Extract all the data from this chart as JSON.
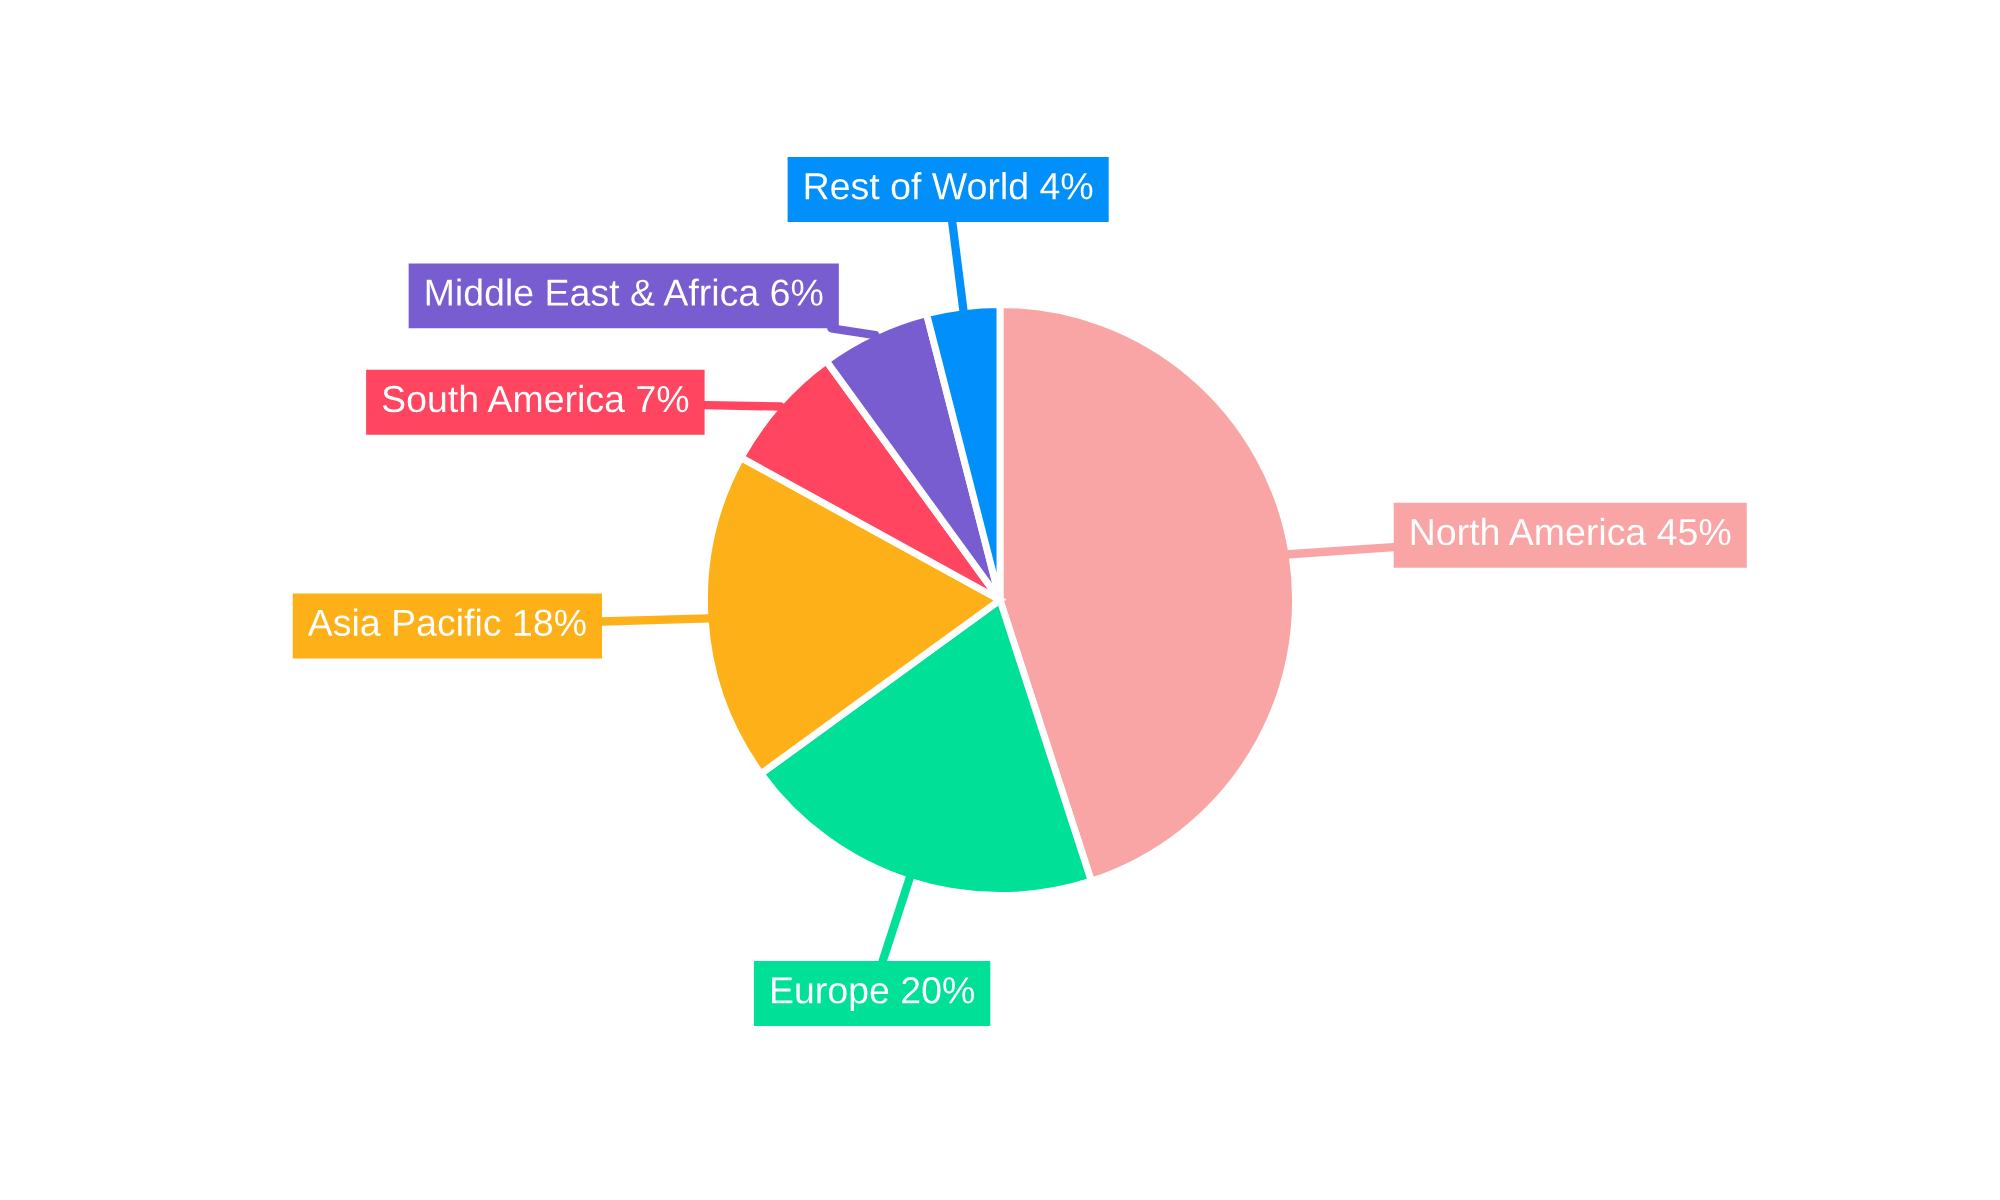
{
  "chart_data": {
    "type": "pie",
    "categories": [
      "North America",
      "Europe",
      "Asia Pacific",
      "South America",
      "Middle East & Africa",
      "Rest of World"
    ],
    "values": [
      45,
      20,
      18,
      7,
      6,
      4
    ],
    "value_labels": [
      "45%",
      "20%",
      "18%",
      "7%",
      "6%",
      "4%"
    ],
    "colors": [
      "#f9a5a6",
      "#00e096",
      "#feb019",
      "#ff4560",
      "#775dd0",
      "#008ffb"
    ],
    "legend": false
  }
}
